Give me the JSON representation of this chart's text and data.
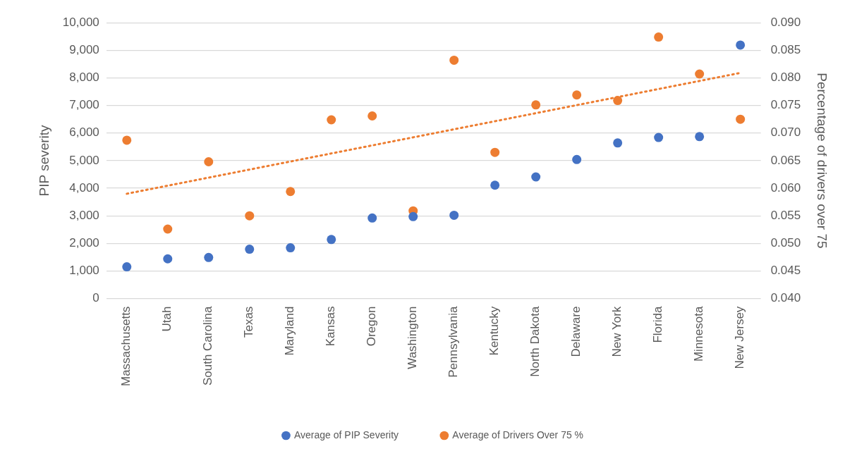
{
  "chart_data": {
    "type": "scatter",
    "ylabel": "PIP severity",
    "y2label": "Percentage of drivers over 75",
    "categories": [
      "Massachusetts",
      "Utah",
      "South Carolina",
      "Texas",
      "Maryland",
      "Kansas",
      "Oregon",
      "Washington",
      "Pennsylvania",
      "Kentucky",
      "North Dakota",
      "Delaware",
      "New York",
      "Florida",
      "Minnesota",
      "New Jersey"
    ],
    "series": [
      {
        "name": "Average of PIP Severity",
        "color": "#4472c4",
        "values": [
          1150,
          1440,
          1490,
          1790,
          1840,
          2140,
          2920,
          2970,
          3020,
          4110,
          4410,
          5040,
          5640,
          5840,
          5870,
          9190
        ]
      },
      {
        "name": "Average of Drivers Over 75 %",
        "color": "#ed7d31",
        "axis": "y2",
        "values": [
          0.0687,
          0.0526,
          0.0648,
          0.055,
          0.0594,
          0.0724,
          0.0731,
          0.0559,
          0.0832,
          0.0665,
          0.0751,
          0.0769,
          0.0759,
          0.0874,
          0.0807,
          0.0725
        ]
      },
      {
        "type": "line",
        "color": "#ed7d31",
        "axis": "y2",
        "line_style": "dotted",
        "marker": "none",
        "x": [
          "Massachusetts",
          "New Jersey"
        ],
        "values": [
          0.059,
          0.0809
        ]
      }
    ],
    "ylim": [
      0,
      10000
    ],
    "yticks": [
      0,
      {
        "value": 1000,
        "label": "1,000"
      },
      {
        "value": 2000,
        "label": "2,000"
      },
      {
        "value": 3000,
        "label": "3,000"
      },
      {
        "value": 4000,
        "label": "4,000"
      },
      {
        "value": 5000,
        "label": "5,000"
      },
      {
        "value": 6000,
        "label": "6,000"
      },
      {
        "value": 7000,
        "label": "7,000"
      },
      {
        "value": 8000,
        "label": "8,000"
      },
      {
        "value": 9000,
        "label": "9,000"
      },
      {
        "value": 10000,
        "label": "10,000"
      }
    ],
    "y2lim": [
      0.04,
      0.09
    ],
    "y2ticks": [
      {
        "value": 0.04,
        "label": "0.040"
      },
      {
        "value": 0.045,
        "label": "0.045"
      },
      {
        "value": 0.05,
        "label": "0.050"
      },
      {
        "value": 0.055,
        "label": "0.055"
      },
      {
        "value": 0.06,
        "label": "0.060"
      },
      {
        "value": 0.065,
        "label": "0.065"
      },
      {
        "value": 0.07,
        "label": "0.070"
      },
      {
        "value": 0.075,
        "label": "0.075"
      },
      {
        "value": 0.08,
        "label": "0.080"
      },
      {
        "value": 0.085,
        "label": "0.085"
      },
      {
        "value": 0.09,
        "label": "0.090"
      }
    ],
    "grid": "y",
    "legend": "bottom",
    "marker": "circle"
  }
}
